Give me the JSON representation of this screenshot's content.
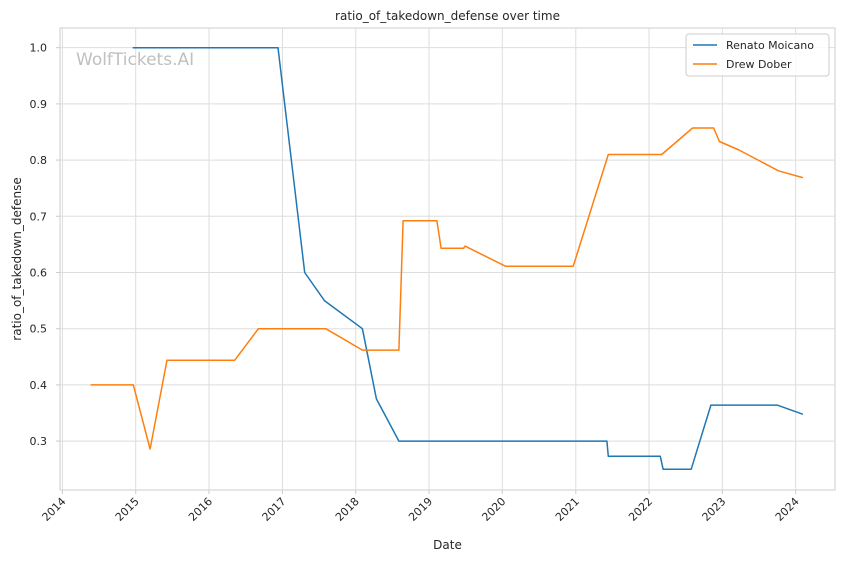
{
  "chart_data": {
    "type": "line",
    "title": "ratio_of_takedown_defense over time",
    "xlabel": "Date",
    "ylabel": "ratio_of_takedown_defense",
    "watermark": "WolfTickets.AI",
    "xlim": [
      "2013-12-20",
      "2024-07-15"
    ],
    "ylim": [
      0.213,
      1.035
    ],
    "x_ticks": [
      "2014",
      "2015",
      "2016",
      "2017",
      "2018",
      "2019",
      "2020",
      "2021",
      "2022",
      "2023",
      "2024"
    ],
    "y_ticks": [
      0.3,
      0.4,
      0.5,
      0.6,
      0.7,
      0.8,
      0.9,
      1.0
    ],
    "y_tick_labels": [
      "0.3",
      "0.4",
      "0.5",
      "0.6",
      "0.7",
      "0.8",
      "0.9",
      "1.0"
    ],
    "grid": true,
    "legend_position": "top-right",
    "series": [
      {
        "name": "Renato Moicano",
        "color": "#1f77b4",
        "points": [
          [
            "2014-12-20",
            1.0
          ],
          [
            "2016-12-10",
            1.0
          ],
          [
            "2017-04-22",
            0.6
          ],
          [
            "2017-07-29",
            0.55
          ],
          [
            "2018-02-03",
            0.5
          ],
          [
            "2018-04-14",
            0.375
          ],
          [
            "2018-08-04",
            0.3
          ],
          [
            "2021-06-05",
            0.3
          ],
          [
            "2021-06-12",
            0.273
          ],
          [
            "2022-02-26",
            0.273
          ],
          [
            "2022-03-12",
            0.25
          ],
          [
            "2022-07-30",
            0.25
          ],
          [
            "2022-11-05",
            0.364
          ],
          [
            "2023-10-01",
            0.364
          ],
          [
            "2024-02-03",
            0.348
          ]
        ]
      },
      {
        "name": "Drew Dober",
        "color": "#ff7f0e",
        "points": [
          [
            "2014-05-24",
            0.4
          ],
          [
            "2014-12-20",
            0.4
          ],
          [
            "2015-03-14",
            0.286
          ],
          [
            "2015-06-06",
            0.444
          ],
          [
            "2016-05-08",
            0.444
          ],
          [
            "2016-09-03",
            0.5
          ],
          [
            "2017-08-05",
            0.5
          ],
          [
            "2018-02-03",
            0.462
          ],
          [
            "2018-08-04",
            0.462
          ],
          [
            "2018-08-25",
            0.692
          ],
          [
            "2019-02-09",
            0.692
          ],
          [
            "2019-03-02",
            0.643
          ],
          [
            "2019-06-22",
            0.643
          ],
          [
            "2019-06-29",
            0.647
          ],
          [
            "2020-01-18",
            0.611
          ],
          [
            "2020-12-19",
            0.611
          ],
          [
            "2021-06-12",
            0.81
          ],
          [
            "2022-03-05",
            0.81
          ],
          [
            "2022-08-06",
            0.857
          ],
          [
            "2022-11-19",
            0.857
          ],
          [
            "2022-12-17",
            0.833
          ],
          [
            "2023-03-25",
            0.818
          ],
          [
            "2023-10-07",
            0.781
          ],
          [
            "2024-02-03",
            0.769
          ]
        ]
      }
    ]
  }
}
